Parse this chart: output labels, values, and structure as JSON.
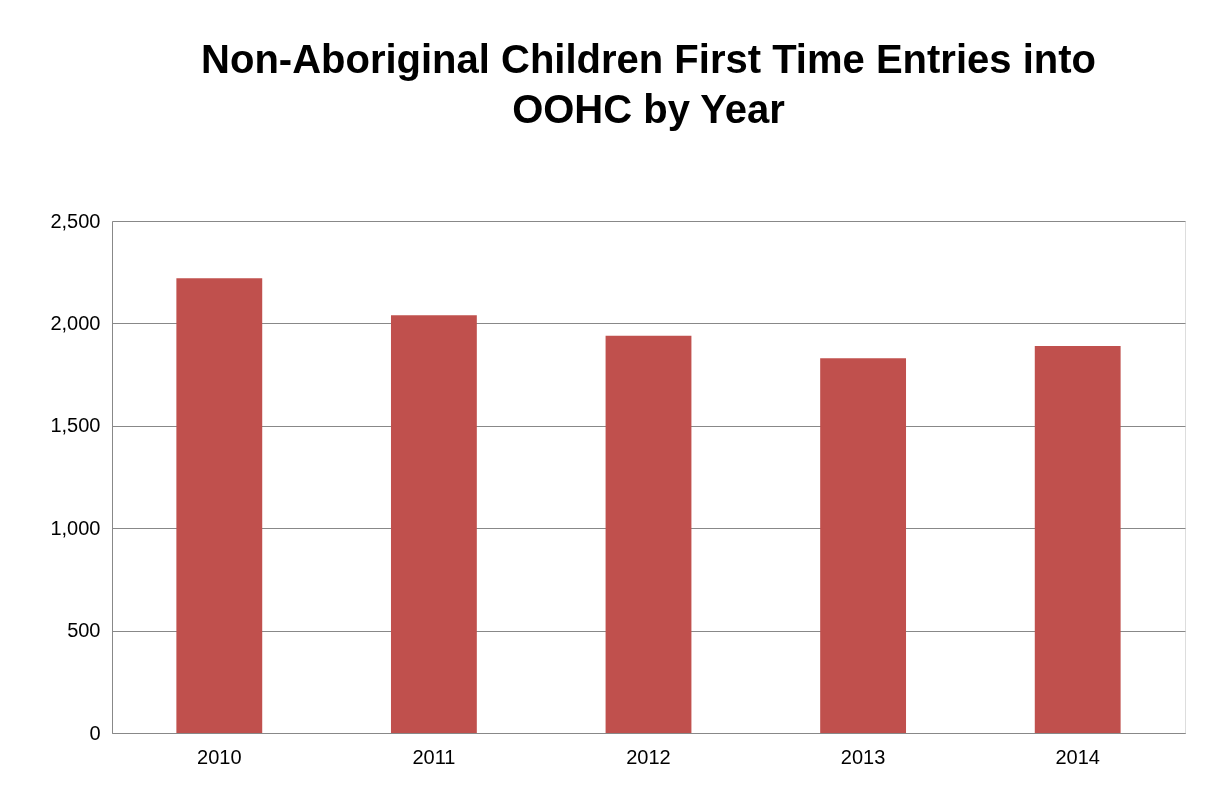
{
  "chart_data": {
    "type": "bar",
    "title": "Non-Aboriginal Children First Time Entries into OOHC by Year",
    "categories": [
      "2010",
      "2011",
      "2012",
      "2013",
      "2014"
    ],
    "series": [
      {
        "color": "#c0504d",
        "values": [
          2220,
          2040,
          1940,
          1830,
          1890
        ]
      }
    ],
    "ylim": [
      0,
      2500
    ],
    "yticks": [
      {
        "value": 0,
        "label": "0"
      },
      {
        "value": 500,
        "label": "500"
      },
      {
        "value": 1000,
        "label": "1,000"
      },
      {
        "value": 1500,
        "label": "1,500"
      },
      {
        "value": 2000,
        "label": "2,000"
      },
      {
        "value": 2500,
        "label": "2,500"
      }
    ],
    "grid": "y",
    "legend": false
  }
}
